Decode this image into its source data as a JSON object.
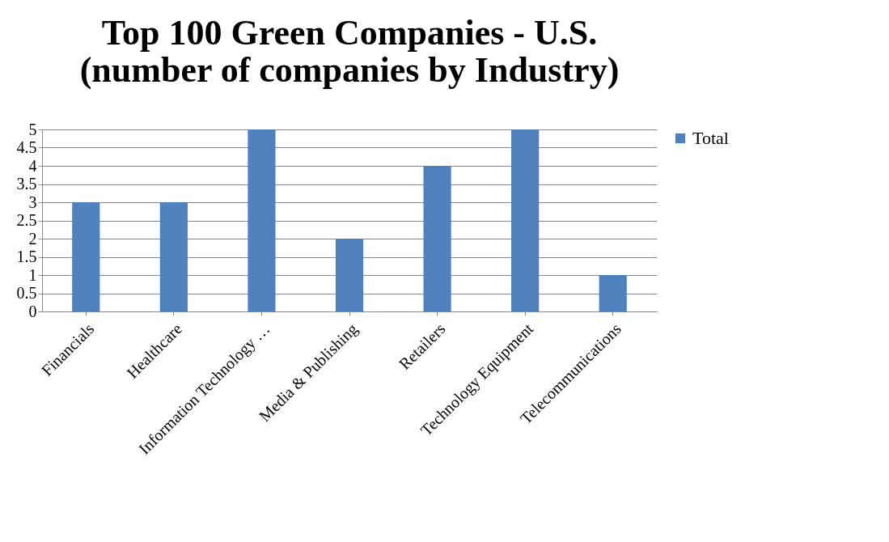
{
  "chart_data": {
    "type": "bar",
    "title": "Top 100 Green Companies - U.S. (number of companies by Industry)",
    "categories": [
      "Financials",
      "Healthcare",
      "Information Technology …",
      "Media & Publishing",
      "Retailers",
      "Technology Equipment",
      "Telecommunications"
    ],
    "series": [
      {
        "name": "Total",
        "color": "#4f81bd",
        "values": [
          3,
          3,
          5,
          2,
          4,
          5,
          1
        ]
      }
    ],
    "ylim": [
      0,
      5
    ],
    "yticks": [
      0,
      0.5,
      1,
      1.5,
      2,
      2.5,
      3,
      3.5,
      4,
      4.5,
      5
    ],
    "grid": "y",
    "legend": "right"
  }
}
